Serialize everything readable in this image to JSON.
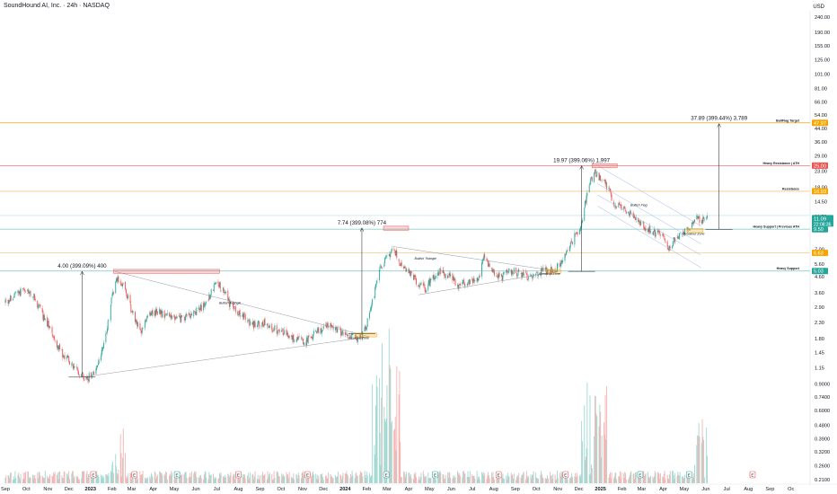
{
  "header": {
    "title": "SoundHound AI, Inc. · 24h · NASDAQ",
    "currency": "USD"
  },
  "colors": {
    "up": "#26a69a",
    "down": "#ef5350",
    "orange": "#f7a600",
    "pink": "#f28b8b",
    "gray": "#787b86",
    "upVol": "#9fd9d2",
    "downVol": "#f7b2b1"
  },
  "chart_data": {
    "type": "candlestick",
    "scale": "log",
    "y_ticks": [
      240,
      190,
      155,
      125,
      101,
      81,
      66,
      54,
      44,
      36,
      29,
      23,
      18,
      14.5,
      11.5,
      9.5,
      7,
      5.6,
      4.6,
      3.6,
      2.9,
      2.3,
      1.8,
      1.45,
      1.15,
      0.9,
      0.74,
      0.6,
      0.48,
      0.39,
      0.32,
      0.26,
      0.21
    ],
    "y_tick_labels": [
      "240.00",
      "190.00",
      "155.00",
      "125.00",
      "101.00",
      "81.00",
      "66.00",
      "54.00",
      "44.00",
      "36.00",
      "29.00",
      "23.00",
      "18.00",
      "14.50",
      "11.50",
      "9.50",
      "7.00",
      "5.60",
      "4.60",
      "3.60",
      "2.90",
      "2.30",
      "1.80",
      "1.45",
      "1.15",
      "0.9000",
      "0.7400",
      "0.6000",
      "0.4800",
      "0.3900",
      "0.3200",
      "0.2600",
      "0.2100"
    ],
    "x_axis": {
      "start": "2022-09-01",
      "end": "2025-10-31",
      "ticks": [
        {
          "date": "2022-09-01",
          "label": "Sep",
          "bold": false
        },
        {
          "date": "2022-10-01",
          "label": "Oct",
          "bold": false
        },
        {
          "date": "2022-11-01",
          "label": "Nov",
          "bold": false
        },
        {
          "date": "2022-12-01",
          "label": "Dec",
          "bold": false
        },
        {
          "date": "2023-01-01",
          "label": "2023",
          "bold": true
        },
        {
          "date": "2023-02-01",
          "label": "Feb",
          "bold": false
        },
        {
          "date": "2023-03-01",
          "label": "Mar",
          "bold": false
        },
        {
          "date": "2023-04-01",
          "label": "Apr",
          "bold": false
        },
        {
          "date": "2023-05-01",
          "label": "May",
          "bold": false
        },
        {
          "date": "2023-06-01",
          "label": "Jun",
          "bold": false
        },
        {
          "date": "2023-07-01",
          "label": "Jul",
          "bold": false
        },
        {
          "date": "2023-08-01",
          "label": "Aug",
          "bold": false
        },
        {
          "date": "2023-09-01",
          "label": "Sep",
          "bold": false
        },
        {
          "date": "2023-10-01",
          "label": "Oct",
          "bold": false
        },
        {
          "date": "2023-11-01",
          "label": "Nov",
          "bold": false
        },
        {
          "date": "2023-12-01",
          "label": "Dec",
          "bold": false
        },
        {
          "date": "2024-01-01",
          "label": "2024",
          "bold": true
        },
        {
          "date": "2024-02-01",
          "label": "Feb",
          "bold": false
        },
        {
          "date": "2024-03-01",
          "label": "Mar",
          "bold": false
        },
        {
          "date": "2024-04-01",
          "label": "Apr",
          "bold": false
        },
        {
          "date": "2024-05-01",
          "label": "May",
          "bold": false
        },
        {
          "date": "2024-06-01",
          "label": "Jun",
          "bold": false
        },
        {
          "date": "2024-07-01",
          "label": "Jul",
          "bold": false
        },
        {
          "date": "2024-08-01",
          "label": "Aug",
          "bold": false
        },
        {
          "date": "2024-09-01",
          "label": "Sep",
          "bold": false
        },
        {
          "date": "2024-10-01",
          "label": "Oct",
          "bold": false
        },
        {
          "date": "2024-11-01",
          "label": "Nov",
          "bold": false
        },
        {
          "date": "2024-12-01",
          "label": "Dec",
          "bold": false
        },
        {
          "date": "2025-01-01",
          "label": "2025",
          "bold": true
        },
        {
          "date": "2025-02-01",
          "label": "Feb",
          "bold": false
        },
        {
          "date": "2025-03-01",
          "label": "Mar",
          "bold": false
        },
        {
          "date": "2025-04-01",
          "label": "Apr",
          "bold": false
        },
        {
          "date": "2025-05-01",
          "label": "May",
          "bold": false
        },
        {
          "date": "2025-06-01",
          "label": "Jun",
          "bold": false
        },
        {
          "date": "2025-07-01",
          "label": "Jul",
          "bold": false
        },
        {
          "date": "2025-08-01",
          "label": "Aug",
          "bold": false
        },
        {
          "date": "2025-09-01",
          "label": "Sep",
          "bold": false
        },
        {
          "date": "2025-10-01",
          "label": "Oc",
          "bold": false
        }
      ]
    },
    "price_path": [
      [
        "2022-09-01",
        3.1
      ],
      [
        "2022-09-20",
        3.6
      ],
      [
        "2022-10-05",
        3.7
      ],
      [
        "2022-10-15",
        3.2
      ],
      [
        "2022-10-25",
        2.5
      ],
      [
        "2022-11-05",
        2.1
      ],
      [
        "2022-11-15",
        1.6
      ],
      [
        "2022-11-25",
        1.35
      ],
      [
        "2022-12-05",
        1.25
      ],
      [
        "2022-12-15",
        1.05
      ],
      [
        "2022-12-28",
        0.98
      ],
      [
        "2023-01-10",
        1.15
      ],
      [
        "2023-01-20",
        1.6
      ],
      [
        "2023-02-01",
        3.4
      ],
      [
        "2023-02-08",
        4.6
      ],
      [
        "2023-02-20",
        3.8
      ],
      [
        "2023-03-05",
        2.4
      ],
      [
        "2023-03-15",
        2.0
      ],
      [
        "2023-03-25",
        2.6
      ],
      [
        "2023-04-10",
        2.7
      ],
      [
        "2023-04-25",
        2.5
      ],
      [
        "2023-05-10",
        2.4
      ],
      [
        "2023-05-25",
        2.6
      ],
      [
        "2023-06-15",
        3.0
      ],
      [
        "2023-06-30",
        4.3
      ],
      [
        "2023-07-10",
        3.8
      ],
      [
        "2023-07-20",
        3.0
      ],
      [
        "2023-08-05",
        2.6
      ],
      [
        "2023-08-20",
        2.2
      ],
      [
        "2023-09-05",
        2.3
      ],
      [
        "2023-09-20",
        2.1
      ],
      [
        "2023-10-05",
        1.95
      ],
      [
        "2023-10-20",
        1.8
      ],
      [
        "2023-11-05",
        1.7
      ],
      [
        "2023-11-15",
        1.9
      ],
      [
        "2023-11-25",
        2.05
      ],
      [
        "2023-12-10",
        2.2
      ],
      [
        "2023-12-25",
        2.0
      ],
      [
        "2024-01-10",
        1.85
      ],
      [
        "2024-01-20",
        1.8
      ],
      [
        "2024-01-30",
        2.05
      ],
      [
        "2024-02-10",
        3.3
      ],
      [
        "2024-02-20",
        5.2
      ],
      [
        "2024-03-05",
        6.6
      ],
      [
        "2024-03-12",
        6.9
      ],
      [
        "2024-03-20",
        5.5
      ],
      [
        "2024-04-01",
        4.9
      ],
      [
        "2024-04-15",
        4.2
      ],
      [
        "2024-04-25",
        3.8
      ],
      [
        "2024-05-05",
        4.5
      ],
      [
        "2024-05-15",
        5.0
      ],
      [
        "2024-05-28",
        4.7
      ],
      [
        "2024-06-10",
        4.1
      ],
      [
        "2024-06-25",
        4.2
      ],
      [
        "2024-07-10",
        4.4
      ],
      [
        "2024-07-18",
        6.4
      ],
      [
        "2024-07-30",
        5.0
      ],
      [
        "2024-08-10",
        4.5
      ],
      [
        "2024-08-25",
        5.1
      ],
      [
        "2024-09-10",
        4.7
      ],
      [
        "2024-09-25",
        4.6
      ],
      [
        "2024-10-10",
        5.0
      ],
      [
        "2024-10-25",
        5.1
      ],
      [
        "2024-11-05",
        5.6
      ],
      [
        "2024-11-15",
        7.0
      ],
      [
        "2024-11-25",
        8.5
      ],
      [
        "2024-12-05",
        10.5
      ],
      [
        "2024-12-15",
        18.5
      ],
      [
        "2024-12-24",
        23.0
      ],
      [
        "2025-01-01",
        20.5
      ],
      [
        "2025-01-10",
        18.5
      ],
      [
        "2025-01-20",
        14.0
      ],
      [
        "2025-02-01",
        13.0
      ],
      [
        "2025-02-15",
        11.5
      ],
      [
        "2025-03-01",
        10.2
      ],
      [
        "2025-03-15",
        9.3
      ],
      [
        "2025-03-30",
        8.6
      ],
      [
        "2025-04-08",
        7.2
      ],
      [
        "2025-04-20",
        8.4
      ],
      [
        "2025-05-01",
        9.2
      ],
      [
        "2025-05-10",
        9.9
      ],
      [
        "2025-05-20",
        11.2
      ],
      [
        "2025-05-28",
        10.8
      ],
      [
        "2025-06-03",
        11.09
      ]
    ],
    "levels": [
      {
        "name": "BullFlag Target",
        "price": 47.97,
        "color": "#f7a600",
        "badge": "47.97",
        "badge_color": "#f7a600"
      },
      {
        "name": "Heavy Resistance | ATH",
        "price": 25.0,
        "color": "#f28b8b",
        "badge": "25.00",
        "badge_color": "#ef5350"
      },
      {
        "name": "Resistance",
        "price": 16.93,
        "color": "#f7c98a",
        "badge": "16.93",
        "badge_color": "#f7a600"
      },
      {
        "name": "Heavy Support | Previous ATH",
        "price": 9.5,
        "color": "#8fcfc9",
        "badge": "9.50",
        "badge_color": "#26a69a"
      },
      {
        "name": "",
        "price": 6.63,
        "color": "#f7c98a",
        "badge": "6.63",
        "badge_color": "#f7a600"
      },
      {
        "name": "Heavy Support",
        "price": 5.03,
        "color": "#8fcfc9",
        "badge": "5.03",
        "badge_color": "#26a69a"
      }
    ],
    "current_price": {
      "value": "11.09",
      "countdown": "22:08:36",
      "extra_line_price": 11.7
    },
    "measurements": [
      {
        "label": "4.00 (399.09%) 400",
        "date": "2022-12-20",
        "low": 1.0,
        "high": 5.0
      },
      {
        "label": "7.74 (399.08%) 774",
        "date": "2024-01-25",
        "low": 1.94,
        "high": 9.68
      },
      {
        "label": "19.97 (399.06%) 1,997",
        "date": "2024-12-05",
        "low": 5.0,
        "high": 24.97
      },
      {
        "label": "37.89 (399.44%) 3,789",
        "date": "2025-06-20",
        "low": 9.48,
        "high": 47.37
      }
    ],
    "annotations": [
      {
        "text": "Bullish Triangle",
        "date": "2023-07-20",
        "price": 3.05
      },
      {
        "text": "Breakout Zone",
        "date": "2024-01-20",
        "price": 1.78
      },
      {
        "text": "Bullish Triangle",
        "date": "2024-04-25",
        "price": 6.0
      },
      {
        "text": "Breakout Zone",
        "date": "2024-10-20",
        "price": 4.75
      },
      {
        "text": "Bullish Flag",
        "date": "2025-02-25",
        "price": 13.5
      },
      {
        "text": "Breakout Zone",
        "date": "2025-05-15",
        "price": 8.7
      }
    ],
    "events": [
      {
        "date": "2023-01-05",
        "type": "E"
      },
      {
        "date": "2023-03-05",
        "type": "E"
      },
      {
        "date": "2023-05-05",
        "type": "E"
      },
      {
        "date": "2023-08-01",
        "type": "E"
      },
      {
        "date": "2023-11-08",
        "type": "E"
      },
      {
        "date": "2024-02-29",
        "type": "E"
      },
      {
        "date": "2024-05-09",
        "type": "E"
      },
      {
        "date": "2024-08-08",
        "type": "E"
      },
      {
        "date": "2024-11-12",
        "type": "E"
      },
      {
        "date": "2025-02-27",
        "type": "E"
      },
      {
        "date": "2025-05-08",
        "type": "E"
      },
      {
        "date": "2025-08-07",
        "type": "E"
      }
    ]
  }
}
